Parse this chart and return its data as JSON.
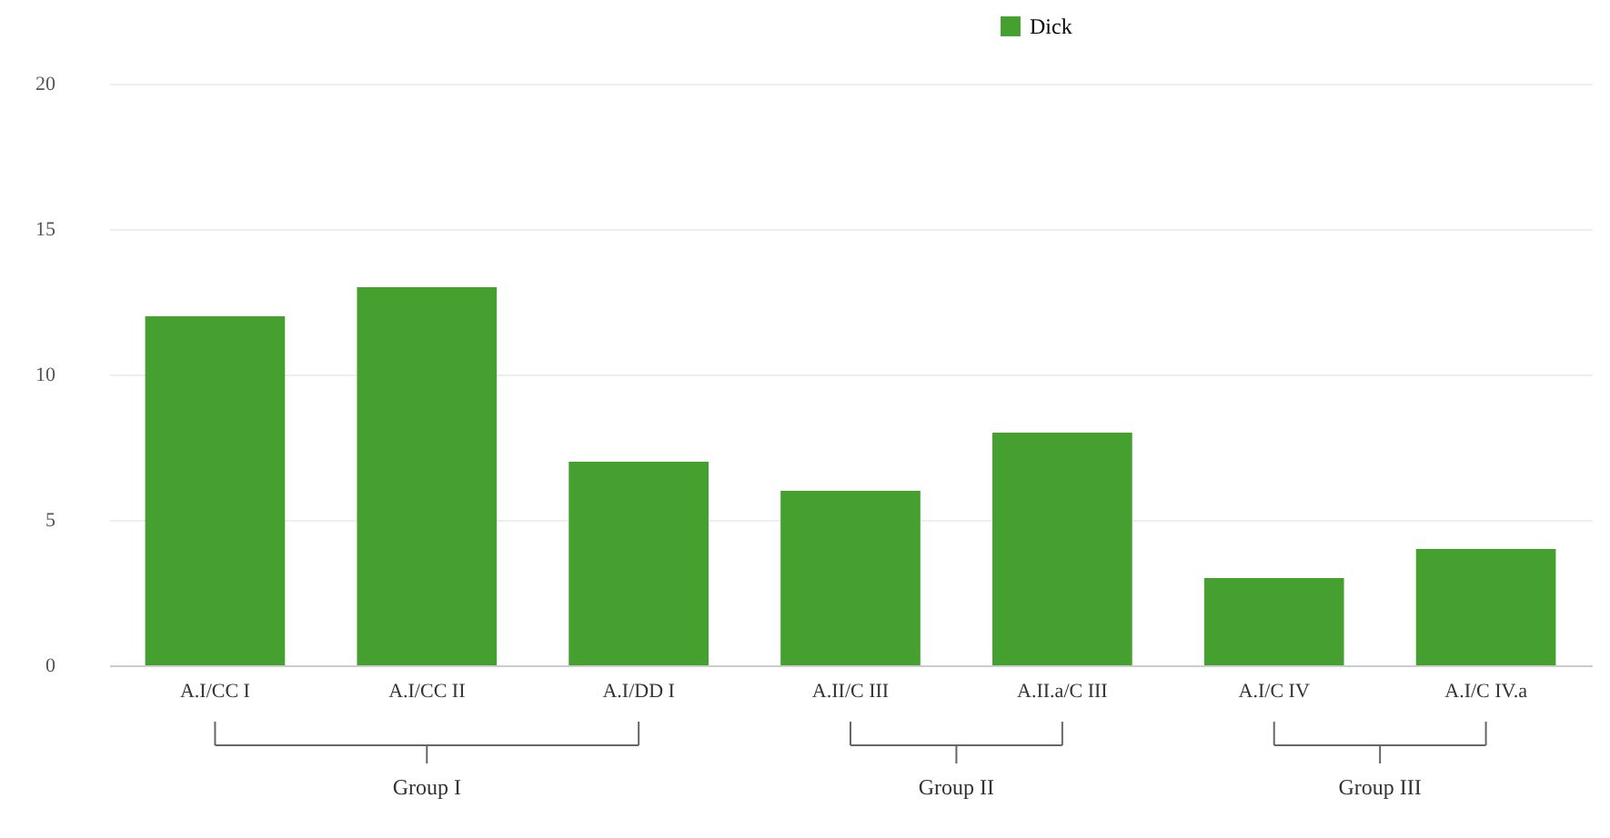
{
  "chart_data": {
    "type": "bar",
    "categories": [
      "A.I/CC I",
      "A.I/CC II",
      "A.I/DD I",
      "A.II/C III",
      "A.II.a/C III",
      "A.I/C IV",
      "A.I/C IV.a"
    ],
    "series": [
      {
        "name": "Dick",
        "color": "#45a030",
        "values": [
          12,
          13,
          7,
          6,
          8,
          3,
          4
        ]
      }
    ],
    "ylim": [
      0,
      20
    ],
    "yticks": [
      0,
      5,
      10,
      15,
      20
    ],
    "grid": "y",
    "legend": "top right",
    "annotations": [
      "Group I",
      "Group II",
      "Group III"
    ]
  }
}
